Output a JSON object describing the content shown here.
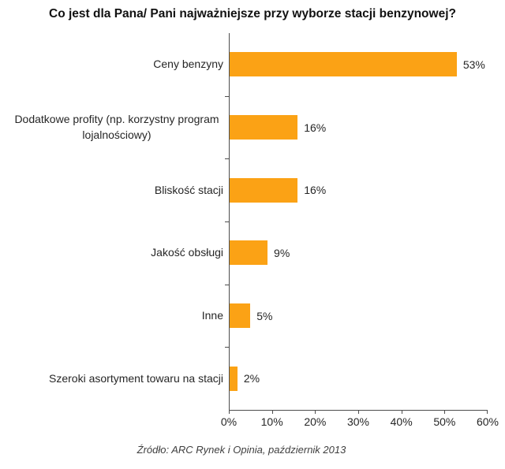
{
  "page": {
    "background": "#ffffff"
  },
  "chart_data": {
    "type": "bar",
    "orientation": "horizontal",
    "title": "Co jest dla Pana/ Pani najważniejsze przy wyborze stacji benzynowej?",
    "categories": [
      "Ceny benzyny",
      "Dodatkowe profity (np. korzystny program lojalnościowy)",
      "Bliskość stacji",
      "Jakość obsługi",
      "Inne",
      "Szeroki asortyment towaru na stacji"
    ],
    "values": [
      53,
      16,
      16,
      9,
      5,
      2
    ],
    "value_labels": [
      "53%",
      "16%",
      "16%",
      "9%",
      "5%",
      "2%"
    ],
    "x_ticks": [
      "0%",
      "10%",
      "20%",
      "30%",
      "40%",
      "50%",
      "60%"
    ],
    "x_tick_values": [
      0,
      10,
      20,
      30,
      40,
      50,
      60
    ],
    "xlim": [
      0,
      60
    ],
    "xlabel": "",
    "ylabel": "",
    "grid": false,
    "legend": false,
    "bar_color": "#fba215",
    "axis_color": "#4d4d4d",
    "text_color": "#262626",
    "source": "Źródło: ARC Rynek i Opinia, październik 2013"
  }
}
